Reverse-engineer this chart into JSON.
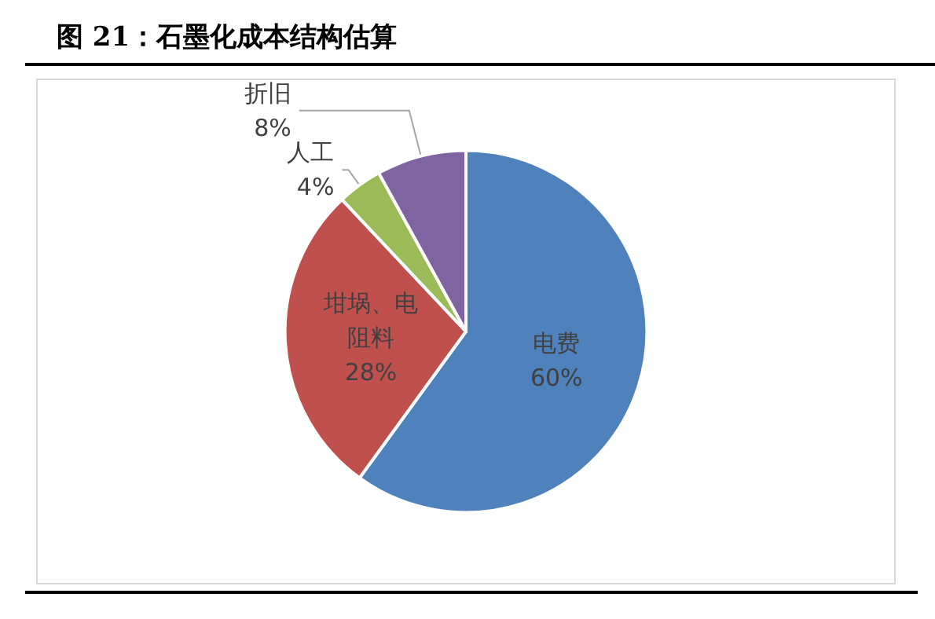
{
  "chart_data": {
    "type": "pie",
    "title": "图 21：石墨化成本结构估算",
    "categories": [
      "电费",
      "坩埚、电阻料",
      "人工",
      "折旧"
    ],
    "values": [
      60,
      28,
      4,
      8
    ],
    "colors": [
      "#4f81bd",
      "#c0504d",
      "#9bbb59",
      "#8064a2"
    ],
    "value_labels": [
      "60%",
      "28%",
      "4%",
      "8%"
    ],
    "legend": false
  }
}
